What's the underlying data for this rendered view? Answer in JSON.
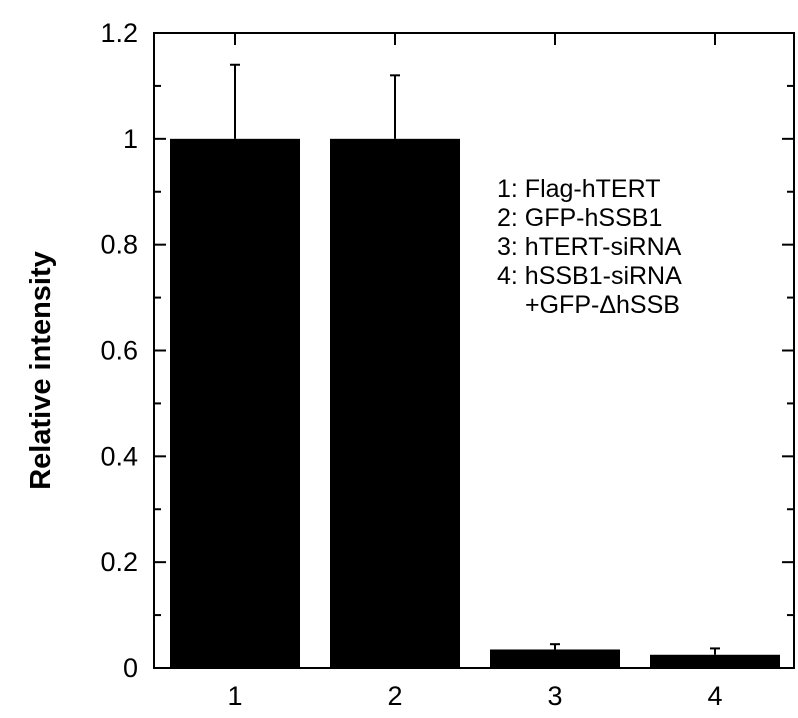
{
  "chart_data": {
    "type": "bar",
    "categories": [
      "1",
      "2",
      "3",
      "4"
    ],
    "values": [
      1.0,
      1.0,
      0.035,
      0.025
    ],
    "errors": [
      0.14,
      0.12,
      0.01,
      0.012
    ],
    "ylabel": "Relative intensity",
    "xlabel": "",
    "ylim": [
      0,
      1.2
    ],
    "yticks": [
      "0",
      "0.2",
      "0.4",
      "0.6",
      "0.8",
      "1",
      "1.2"
    ],
    "bar_color": "#000000",
    "grid": false,
    "legend": {
      "placement": "top-right",
      "entries": [
        "1: Flag-hTERT",
        "2: GFP-hSSB1",
        "3: hTERT-siRNA",
        "4: hSSB1-siRNA",
        "+GFP-ΔhSSB"
      ]
    }
  }
}
